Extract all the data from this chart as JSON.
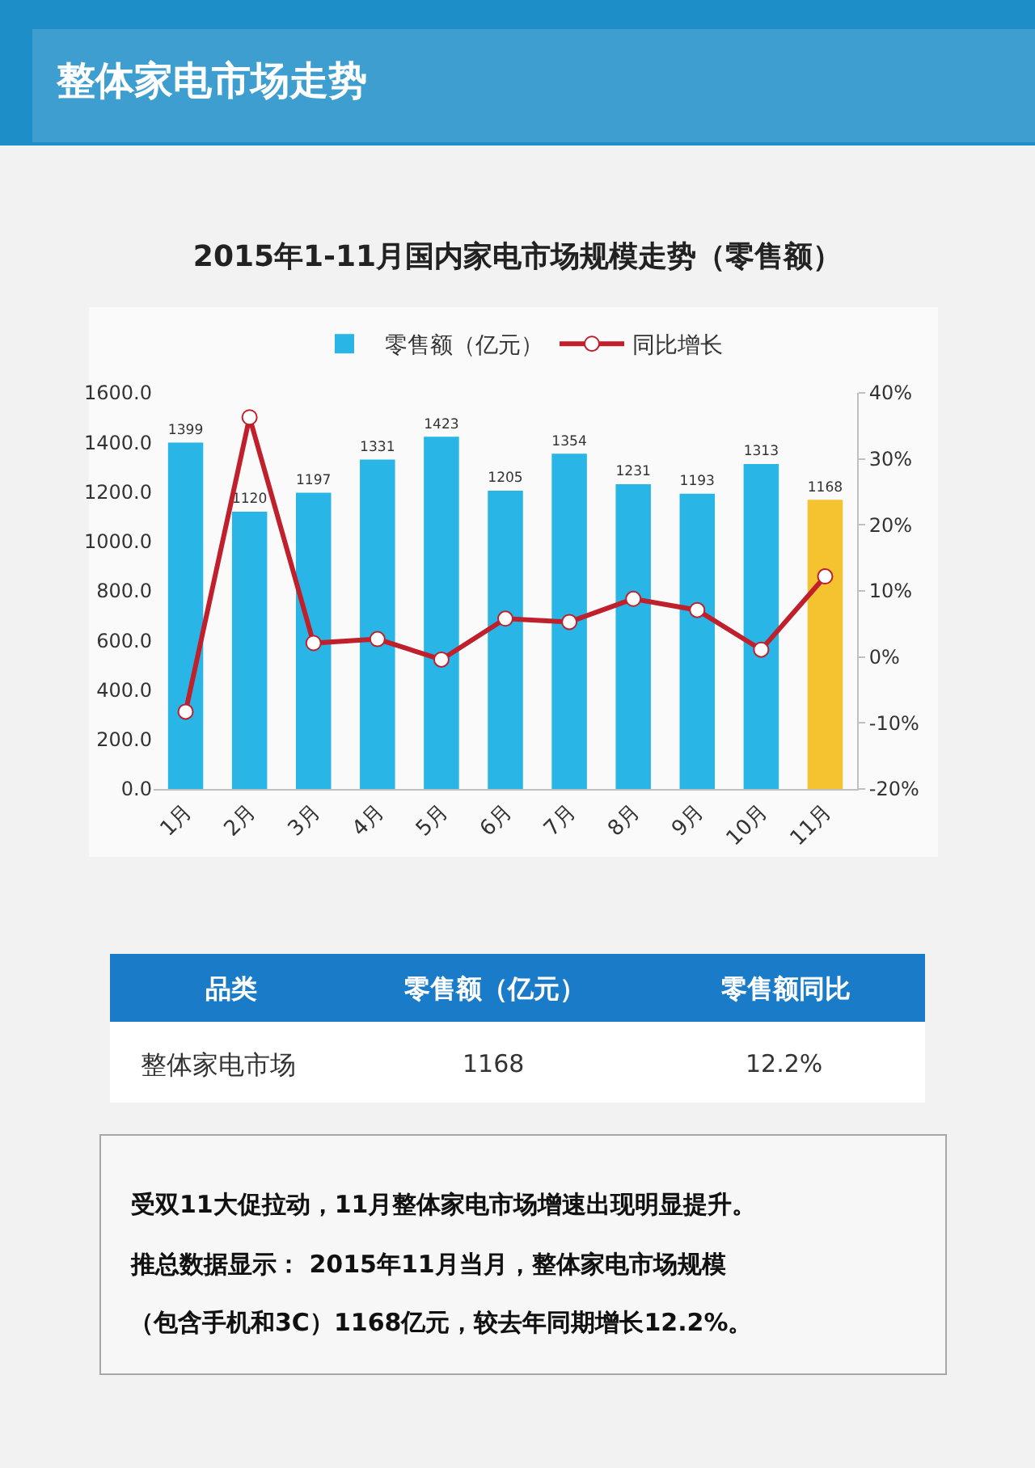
{
  "chart_data": {
    "type": "bar",
    "title": "2015年1-11月国内家电市场规模走势（零售额）",
    "annotations": [
      "整体家电市场走势",
      "品类",
      "零售额（亿元）",
      "零售额同比",
      "整体家电市场",
      "1168",
      "12.2%",
      "受双11大促拉动，11月整体家电市场增速出现明显提升。",
      "推总数据显示： 2015年11月当月，整体家电市场规模",
      "（包含手机和3C）1168亿元，较去年同期增长12.2%。"
    ],
    "categories": [
      "1月",
      "2月",
      "3月",
      "4月",
      "5月",
      "6月",
      "7月",
      "8月",
      "9月",
      "10月",
      "11月"
    ],
    "series": [
      {
        "name": "零售额（亿元）",
        "value_labels": [
          "1399",
          "1120",
          "1197",
          "1331",
          "1423",
          "1205",
          "1354",
          "1231",
          "1193",
          "1313",
          "1168"
        ],
        "color": "#29b6e6",
        "colors": [
          "#29b6e6",
          "#29b6e6",
          "#29b6e6",
          "#29b6e6",
          "#29b6e6",
          "#29b6e6",
          "#29b6e6",
          "#29b6e6",
          "#29b6e6",
          "#29b6e6",
          "#f5c330"
        ],
        "values": [
          1399,
          1120,
          1197,
          1331,
          1423,
          1205,
          1354,
          1231,
          1193,
          1313,
          1168
        ]
      },
      {
        "name": "同比增长",
        "type": "line",
        "axis": "y2",
        "color": "#c0202b",
        "marker": "circle",
        "values": [
          -8.3,
          36.3,
          2.1,
          2.7,
          -0.4,
          5.8,
          5.3,
          8.8,
          7.1,
          1.1,
          12.2
        ]
      }
    ],
    "ylim": [
      0,
      1600
    ],
    "yticks": [
      {
        "value": 0,
        "label": "0.0"
      },
      {
        "value": 200,
        "label": "200.0"
      },
      {
        "value": 400,
        "label": "400.0"
      },
      {
        "value": 600,
        "label": "600.0"
      },
      {
        "value": 800,
        "label": "800.0"
      },
      {
        "value": 1000,
        "label": "1000.0"
      },
      {
        "value": 1200,
        "label": "1200.0"
      },
      {
        "value": 1400,
        "label": "1400.0"
      },
      {
        "value": 1600,
        "label": "1600.0"
      }
    ],
    "y2lim": [
      -20,
      40
    ],
    "y2ticks": [
      {
        "value": -20,
        "label": "-20%"
      },
      {
        "value": -10,
        "label": "-10%"
      },
      {
        "value": 0,
        "label": "0%"
      },
      {
        "value": 10,
        "label": "10%"
      },
      {
        "value": 20,
        "label": "20%"
      },
      {
        "value": 30,
        "label": "30%"
      },
      {
        "value": 40,
        "label": "40%"
      }
    ],
    "grid": false,
    "legend": "top"
  }
}
